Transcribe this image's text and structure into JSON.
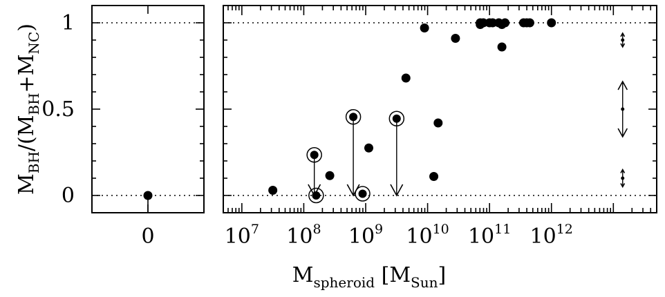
{
  "chart_data": [
    {
      "type": "scatter",
      "title": "",
      "xlabel": "0",
      "ylabel": {
        "main": "M",
        "sub1": "BH",
        "mid": "/(M",
        "sub2": "BH",
        "plus": "+M",
        "sub3": "NC",
        "close": ")"
      },
      "ylim": [
        -0.1,
        1.1
      ],
      "yticks": [
        "0",
        "0.5",
        "1"
      ],
      "xticks": [
        "0"
      ],
      "points": [
        {
          "x": 0,
          "y": 0.0,
          "error_low": 0.1
        }
      ]
    },
    {
      "type": "scatter",
      "title": "",
      "xlabel": {
        "main": "M",
        "sub": "spheroid",
        "unit_open": " [M",
        "unit_sub": "Sun",
        "unit_close": "]"
      },
      "xscale": "log",
      "xlim_log10": [
        6.7,
        13.7
      ],
      "ylim": [
        -0.1,
        1.1
      ],
      "xticks": [
        {
          "base": "10",
          "exp": "7"
        },
        {
          "base": "10",
          "exp": "8"
        },
        {
          "base": "10",
          "exp": "9"
        },
        {
          "base": "10",
          "exp": "10"
        },
        {
          "base": "10",
          "exp": "11"
        },
        {
          "base": "10",
          "exp": "12"
        }
      ],
      "reference_lines": [
        0,
        1
      ],
      "points": [
        {
          "log10_x": 7.5,
          "y": 0.03
        },
        {
          "log10_x": 8.42,
          "y": 0.115
        },
        {
          "log10_x": 9.05,
          "y": 0.275
        },
        {
          "log10_x": 9.65,
          "y": 0.68
        },
        {
          "log10_x": 9.95,
          "y": 0.97
        },
        {
          "log10_x": 10.1,
          "y": 0.11
        },
        {
          "log10_x": 10.17,
          "y": 0.42
        },
        {
          "log10_x": 10.45,
          "y": 0.91
        },
        {
          "log10_x": 10.85,
          "y": 1.0
        },
        {
          "log10_x": 10.85,
          "y": 0.99
        },
        {
          "log10_x": 10.9,
          "y": 1.0
        },
        {
          "log10_x": 11.0,
          "y": 1.0
        },
        {
          "log10_x": 11.05,
          "y": 1.0
        },
        {
          "log10_x": 11.15,
          "y": 1.0
        },
        {
          "log10_x": 11.2,
          "y": 0.99
        },
        {
          "log10_x": 11.25,
          "y": 1.0
        },
        {
          "log10_x": 11.2,
          "y": 0.86
        },
        {
          "log10_x": 11.55,
          "y": 1.0
        },
        {
          "log10_x": 11.6,
          "y": 1.0
        },
        {
          "log10_x": 11.65,
          "y": 1.0
        },
        {
          "log10_x": 12.0,
          "y": 1.0
        }
      ],
      "circled_points": [
        {
          "log10_x": 8.2,
          "y": 0.0
        },
        {
          "log10_x": 8.95,
          "y": 0.01
        }
      ],
      "upper_limits": [
        {
          "log10_x": 8.17,
          "y": 0.235,
          "to": 0.0
        },
        {
          "log10_x": 8.8,
          "y": 0.455,
          "to": 0.0
        },
        {
          "log10_x": 9.5,
          "y": 0.445,
          "to": 0.0
        }
      ],
      "error_bar_examples": [
        {
          "y": 0.9,
          "half_range": 0.04
        },
        {
          "y": 0.5,
          "half_range": 0.16
        },
        {
          "y": 0.1,
          "half_range": 0.05
        }
      ],
      "error_bar_x_log10": 13.15
    }
  ]
}
